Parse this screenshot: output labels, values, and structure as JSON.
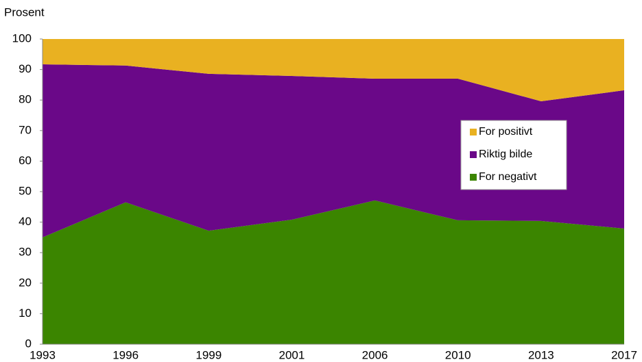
{
  "chart_data": {
    "type": "stacked_area",
    "y_label": "Prosent",
    "categories": [
      "1993",
      "1996",
      "1999",
      "2001",
      "2006",
      "2010",
      "2013",
      "2017"
    ],
    "series": [
      {
        "name": "For negativt",
        "color": "#3b8500",
        "values": [
          35,
          46.5,
          37.2,
          40.8,
          47.1,
          40.6,
          40.4,
          37.9
        ]
      },
      {
        "name": "Riktig bilde",
        "color": "#6a0888",
        "values": [
          56.7,
          44.8,
          51.4,
          47.1,
          39.9,
          46.4,
          39.2,
          45.3
        ]
      },
      {
        "name": "For positivt",
        "color": "#e9b121",
        "values": [
          8.3,
          8.7,
          11.4,
          12.1,
          13,
          13,
          20.4,
          16.8
        ]
      }
    ],
    "ylim": [
      0,
      100
    ],
    "yticks": [
      0,
      10,
      20,
      30,
      40,
      50,
      60,
      70,
      80,
      90,
      100
    ],
    "grid": false,
    "legend": "right"
  }
}
